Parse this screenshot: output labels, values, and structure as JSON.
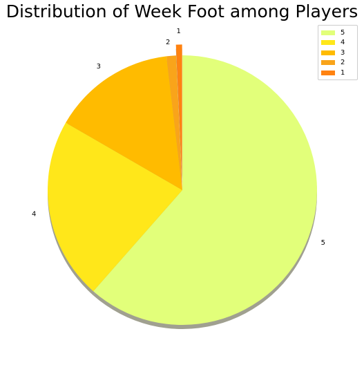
{
  "chart_data": {
    "type": "pie",
    "title": "Distribution of Week Foot among Players",
    "labels": [
      "5",
      "4",
      "3",
      "2",
      "1"
    ],
    "values": [
      1177,
      418,
      283,
      22,
      14
    ],
    "colors": [
      "#E2FF7A",
      "#FFE71A",
      "#FFBB00",
      "#F9A41A",
      "#FF8210"
    ],
    "explode": [
      0,
      0,
      0,
      0,
      0.08
    ],
    "start_angle_deg": 90,
    "direction": "clockwise",
    "shadow": true,
    "legend": {
      "position": "top-right",
      "entries": [
        "5",
        "4",
        "3",
        "2",
        "1"
      ]
    }
  }
}
